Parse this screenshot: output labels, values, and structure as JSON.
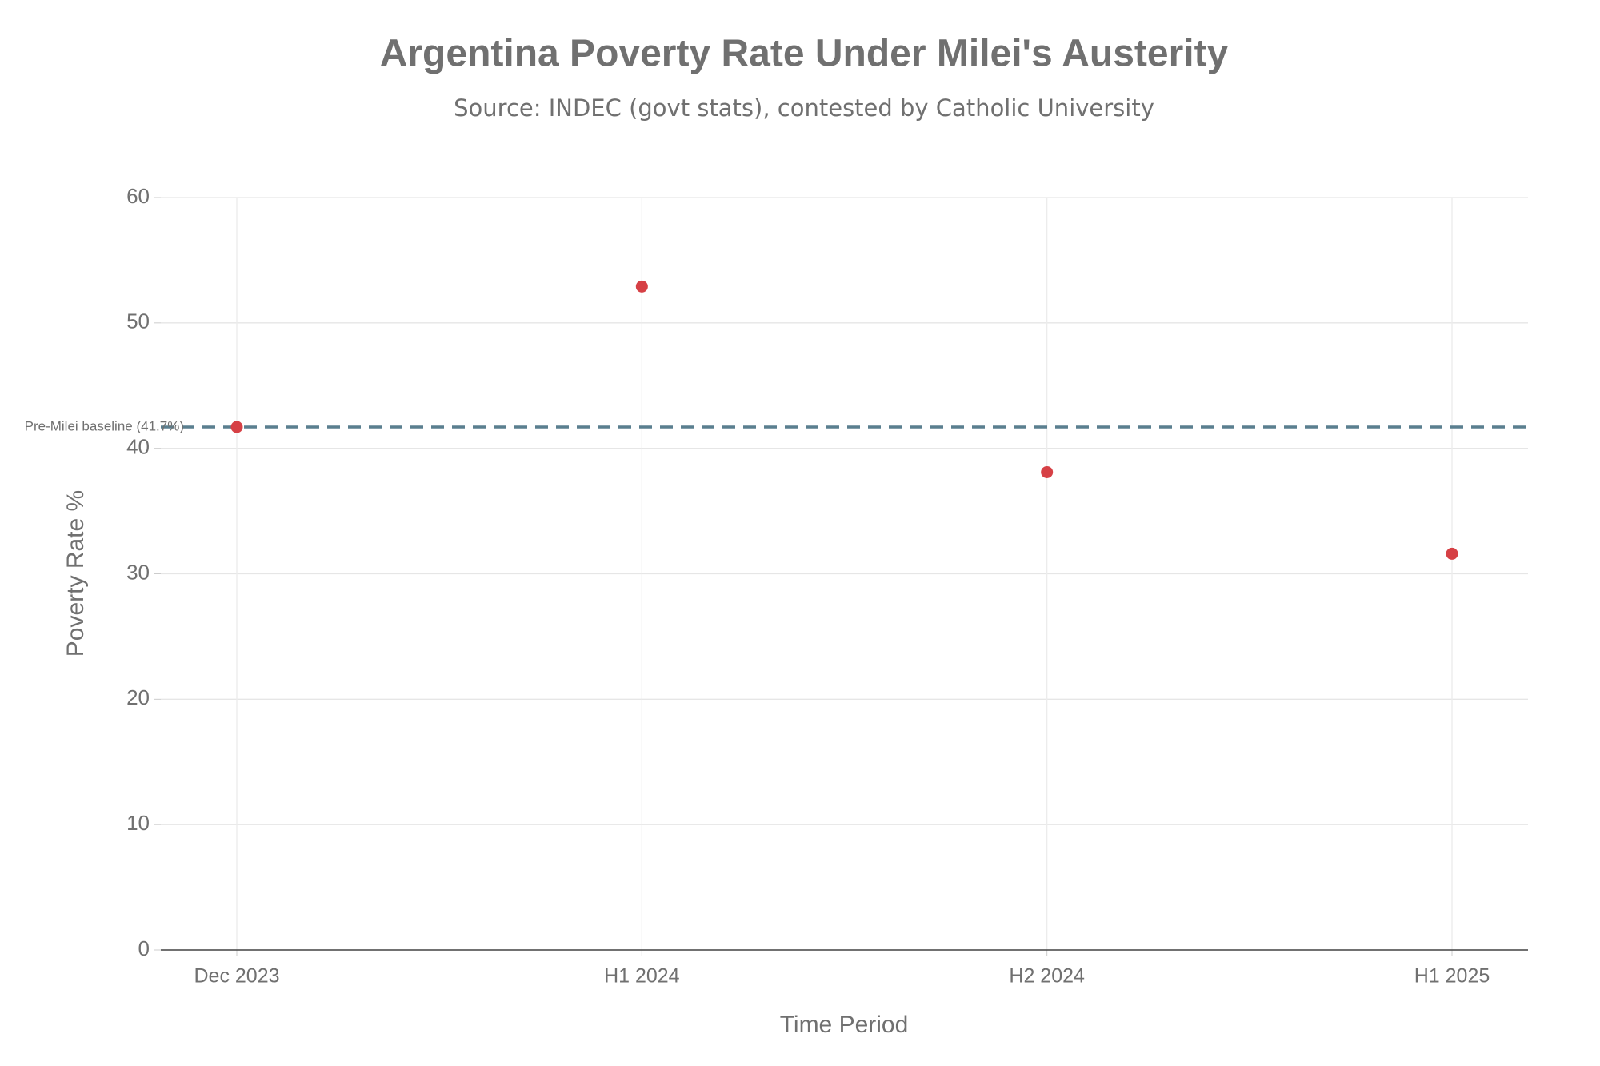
{
  "chart_data": {
    "type": "line",
    "title": "Argentina Poverty Rate Under Milei's Austerity",
    "subtitle": "Source: INDEC (govt stats), contested by Catholic University",
    "x_label": "Time Period",
    "y_label": "Poverty Rate %",
    "categories": [
      "Dec 2023",
      "H1 2024",
      "H2 2024",
      "H1 2025"
    ],
    "series": [
      {
        "name": "Poverty Rate",
        "color": "#d64045",
        "values": [
          41.7,
          52.9,
          38.1,
          31.6
        ]
      }
    ],
    "reference_line": {
      "value": 41.7,
      "label": "Pre-Milei baseline (41.7%)",
      "color": "#5a7f8f"
    },
    "ylim": [
      0,
      60
    ],
    "yticks": [
      0,
      10,
      20,
      30,
      40,
      50,
      60
    ],
    "grid": true
  }
}
